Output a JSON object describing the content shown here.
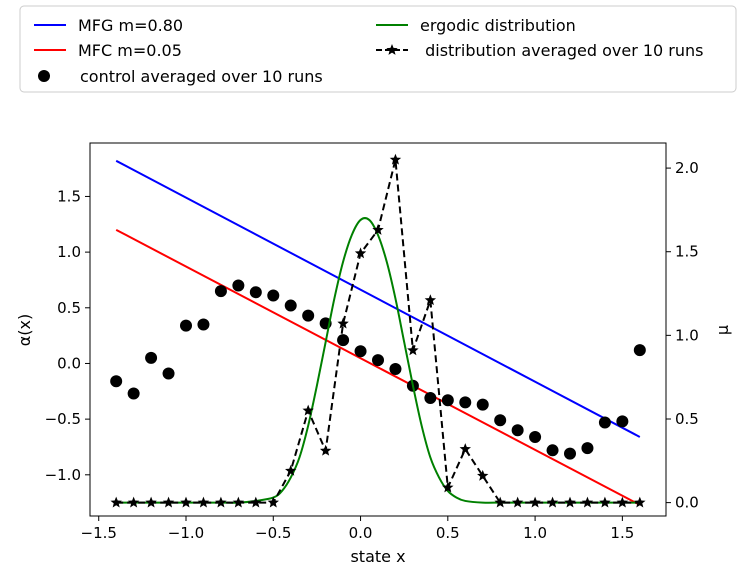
{
  "chart_data": {
    "type": "line",
    "title": "",
    "xlabel": "state x",
    "ylabel_left": "α(x)",
    "ylabel_right": "μ",
    "xlim": [
      -1.55,
      1.75
    ],
    "ylim_left": [
      -1.37,
      1.98
    ],
    "ylim_right": [
      -0.08,
      2.15
    ],
    "grid": false,
    "legend_position": "top",
    "x_ticks": [
      -1.5,
      -1.0,
      -0.5,
      0.0,
      0.5,
      1.0,
      1.5
    ],
    "x_tick_labels": [
      "−1.5",
      "−1.0",
      "−0.5",
      "0.0",
      "0.5",
      "1.0",
      "1.5"
    ],
    "y_left_ticks": [
      -1.0,
      -0.5,
      0.0,
      0.5,
      1.0,
      1.5
    ],
    "y_left_tick_labels": [
      "−1.0",
      "−0.5",
      "0.0",
      "0.5",
      "1.0",
      "1.5"
    ],
    "y_right_ticks": [
      0.0,
      0.5,
      1.0,
      1.5,
      2.0
    ],
    "y_right_tick_labels": [
      "0.0",
      "0.5",
      "1.0",
      "1.5",
      "2.0"
    ],
    "series": [
      {
        "name": "MFG m=0.80",
        "style": "line",
        "axis": "left",
        "color": "#0000ff",
        "x": [
          -1.4,
          1.6
        ],
        "y": [
          1.82,
          -0.66
        ]
      },
      {
        "name": "MFC m=0.05",
        "style": "line",
        "axis": "left",
        "color": "#ff0000",
        "x": [
          -1.4,
          1.6
        ],
        "y": [
          1.2,
          -1.27
        ]
      },
      {
        "name": "control averaged over 10 runs",
        "style": "dots",
        "axis": "left",
        "color": "#000000",
        "x": [
          -1.4,
          -1.3,
          -1.2,
          -1.1,
          -1.0,
          -0.9,
          -0.8,
          -0.7,
          -0.6,
          -0.5,
          -0.4,
          -0.3,
          -0.2,
          -0.1,
          0.0,
          0.1,
          0.2,
          0.3,
          0.4,
          0.5,
          0.6,
          0.7,
          0.8,
          0.9,
          1.0,
          1.1,
          1.2,
          1.3,
          1.4,
          1.5,
          1.6
        ],
        "y": [
          -0.16,
          -0.27,
          0.05,
          -0.09,
          0.34,
          0.35,
          0.65,
          0.7,
          0.64,
          0.61,
          0.52,
          0.43,
          0.36,
          0.21,
          0.11,
          0.03,
          -0.05,
          -0.2,
          -0.31,
          -0.33,
          -0.35,
          -0.37,
          -0.51,
          -0.6,
          -0.66,
          -0.78,
          -0.81,
          -0.76,
          -0.53,
          -0.52,
          0.12
        ]
      },
      {
        "name": "ergodic distribution",
        "style": "line",
        "axis": "right",
        "color": "#008000",
        "x": [
          -1.4,
          -1.3,
          -1.2,
          -1.1,
          -1.0,
          -0.9,
          -0.8,
          -0.7,
          -0.6,
          -0.5,
          -0.45,
          -0.4,
          -0.35,
          -0.3,
          -0.25,
          -0.2,
          -0.15,
          -0.1,
          -0.05,
          0.0,
          0.05,
          0.1,
          0.15,
          0.2,
          0.25,
          0.3,
          0.35,
          0.4,
          0.45,
          0.5,
          0.55,
          0.6,
          0.7,
          0.8,
          0.9,
          1.0,
          1.1,
          1.2,
          1.3,
          1.4,
          1.5,
          1.6
        ],
        "y": [
          0.0,
          0.0,
          0.0,
          0.0,
          0.0,
          0.0,
          0.0,
          0.0,
          0.01,
          0.03,
          0.07,
          0.15,
          0.27,
          0.46,
          0.7,
          0.96,
          1.22,
          1.44,
          1.6,
          1.69,
          1.69,
          1.6,
          1.44,
          1.22,
          0.96,
          0.7,
          0.46,
          0.27,
          0.15,
          0.07,
          0.03,
          0.01,
          0.0,
          0.0,
          0.0,
          0.0,
          0.0,
          0.0,
          0.0,
          0.0,
          0.0,
          0.0
        ]
      },
      {
        "name": " distribution averaged over 10 runs",
        "style": "dashed-star",
        "axis": "right",
        "color": "#000000",
        "x": [
          -1.4,
          -1.3,
          -1.2,
          -1.1,
          -1.0,
          -0.9,
          -0.8,
          -0.7,
          -0.6,
          -0.5,
          -0.4,
          -0.3,
          -0.2,
          -0.1,
          0.0,
          0.1,
          0.2,
          0.3,
          0.4,
          0.5,
          0.6,
          0.7,
          0.8,
          0.9,
          1.0,
          1.1,
          1.2,
          1.3,
          1.4,
          1.5,
          1.6
        ],
        "y": [
          0.0,
          0.0,
          0.0,
          0.0,
          0.0,
          0.0,
          0.0,
          0.0,
          0.0,
          0.0,
          0.19,
          0.55,
          0.31,
          1.07,
          1.49,
          1.63,
          2.05,
          0.91,
          1.21,
          0.09,
          0.32,
          0.16,
          0.0,
          0.0,
          0.0,
          0.0,
          0.0,
          0.0,
          0.0,
          0.0,
          0.0
        ]
      }
    ],
    "legend": [
      {
        "label": "MFG m=0.80",
        "style": "line",
        "color": "#0000ff"
      },
      {
        "label": "MFC m=0.05",
        "style": "line",
        "color": "#ff0000"
      },
      {
        "label": "control averaged over 10 runs",
        "style": "dot",
        "color": "#000000"
      },
      {
        "label": "ergodic distribution",
        "style": "line",
        "color": "#008000"
      },
      {
        "label": " distribution averaged over 10 runs",
        "style": "dashed-star",
        "color": "#000000"
      }
    ]
  }
}
